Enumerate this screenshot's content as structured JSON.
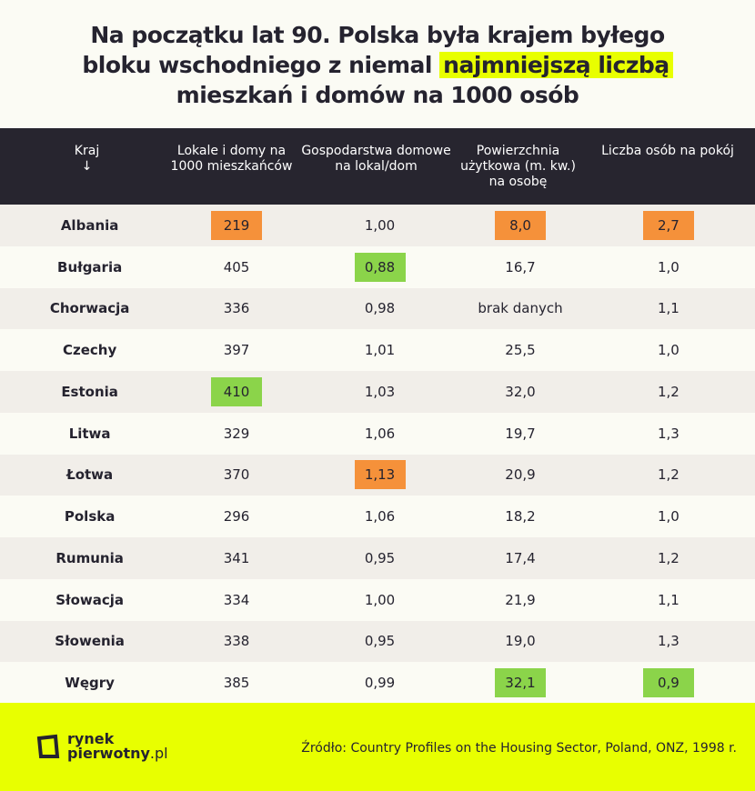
{
  "title": {
    "line1": "Na początku lat 90. Polska była krajem byłego",
    "line2_pre": "bloku wschodniego z niemal ",
    "line2_highlight": "najmniejszą liczbą",
    "line3": "mieszkań i domów na 1000 osób"
  },
  "headers": [
    "Kraj",
    "Lokale i domy na 1000 mieszkańców",
    "Gospodarstwa domowe na lokal/dom",
    "Powierzchnia użytkowa (m. kw.) na osobę",
    "Liczba osób na pokój"
  ],
  "sort_arrow": "↓",
  "colors": {
    "highlight_low": "#f5913a",
    "highlight_high": "#8bd44a",
    "accent": "#e8ff00",
    "header_bg": "#27252f"
  },
  "rows": [
    [
      "Albania",
      "219",
      "1,00",
      "8,0",
      "2,7"
    ],
    [
      "Bułgaria",
      "405",
      "0,88",
      "16,7",
      "1,0"
    ],
    [
      "Chorwacja",
      "336",
      "0,98",
      "brak danych",
      "1,1"
    ],
    [
      "Czechy",
      "397",
      "1,01",
      "25,5",
      "1,0"
    ],
    [
      "Estonia",
      "410",
      "1,03",
      "32,0",
      "1,2"
    ],
    [
      "Litwa",
      "329",
      "1,06",
      "19,7",
      "1,3"
    ],
    [
      "Łotwa",
      "370",
      "1,13",
      "20,9",
      "1,2"
    ],
    [
      "Polska",
      "296",
      "1,06",
      "18,2",
      "1,0"
    ],
    [
      "Rumunia",
      "341",
      "0,95",
      "17,4",
      "1,2"
    ],
    [
      "Słowacja",
      "334",
      "1,00",
      "21,9",
      "1,1"
    ],
    [
      "Słowenia",
      "338",
      "0,95",
      "19,0",
      "1,3"
    ],
    [
      "Węgry",
      "385",
      "0,99",
      "32,1",
      "0,9"
    ]
  ],
  "highlights": {
    "0-1": "o",
    "0-3": "o",
    "0-4": "o",
    "1-2": "g",
    "4-1": "g",
    "6-2": "o",
    "11-3": "g",
    "11-4": "g"
  },
  "footer": {
    "logo_line1": "rynek",
    "logo_line2": "pierwotny",
    "logo_suffix": ".pl",
    "source": "Źródło: Country Profiles on the Housing Sector, Poland, ONZ, 1998 r."
  }
}
